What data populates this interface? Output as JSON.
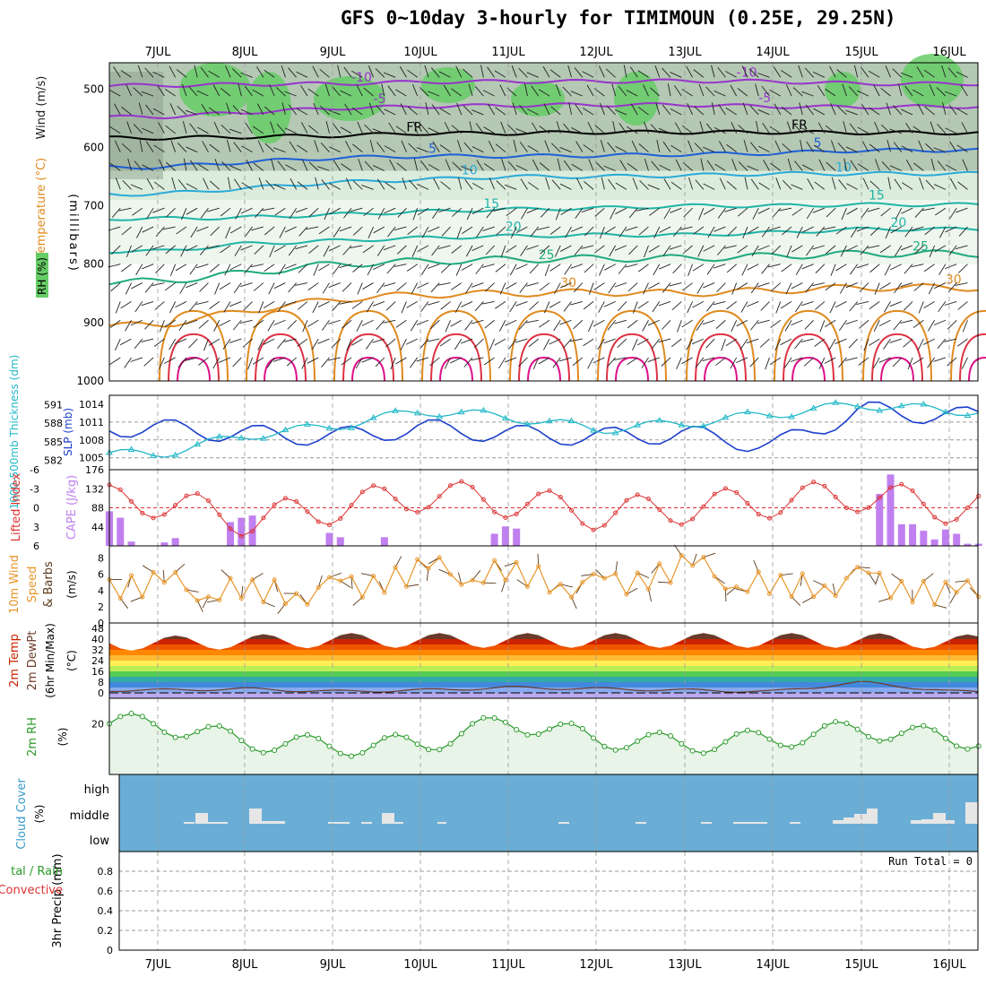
{
  "title": "GFS 0~10day 3-hourly for TIMIMOUN (0.25E, 29.25N)",
  "days": [
    "7JUL",
    "8JUL",
    "9JUL",
    "10JUL",
    "11JUL",
    "12JUL",
    "13JUL",
    "14JUL",
    "15JUL",
    "16JUL"
  ],
  "colors": {
    "rh_dark": "#8ca08c",
    "rh_mid": "#b4c8b4",
    "rh_light": "#dcecdc",
    "rh_green": "#66cc66",
    "temp_purple": "#9933cc",
    "temp_black": "#000000",
    "temp_blue": "#1f5fd8",
    "temp_cyan": "#2aaad8",
    "temp_teal": "#20b4a8",
    "temp_green": "#20aa80",
    "temp_orange": "#e08a1e",
    "temp_red": "#dd3344",
    "temp_magenta": "#dd1188",
    "slp": "#1b3fcc",
    "thickness": "#22b8c8",
    "lifted": "#dd3333",
    "cape": "#c080f0",
    "wind10": "#e8962a",
    "rh2m": "#2a9a2a",
    "cloud_bg": "#6aaed6",
    "cloud_bar": "#e6e6e6"
  },
  "panel_labels": {
    "upper_rh": "RH (%)",
    "upper_temp": "Temperature (°C)",
    "upper_wind": "Wind (m/s)",
    "upper_pressure": "(millibars)",
    "slp": "SLP (mb)",
    "thickness": "1000-500mb Thickness (dm)",
    "lifted": "Lifted Index",
    "cape": "CAPE (J/kg)",
    "wind10_a": "10m Wind",
    "wind10_b": "Speed",
    "wind10_c": "& Barbs",
    "wind10_units": "(m/s)",
    "temp2m_a": "2m Temp",
    "temp2m_b": "2m DewPt",
    "temp2m_c": "(6hr Min/Max)",
    "temp2m_units": "(°C)",
    "rh2m": "2m RH",
    "rh2m_units": "(%)",
    "cloud": "Cloud Cover",
    "cloud_units": "(%)",
    "cloud_high": "high",
    "cloud_middle": "middle",
    "cloud_low": "low",
    "precip": "3hr Precip (mm)",
    "precip_total_rain": "tal / Rain",
    "precip_convective": "Convective",
    "run_total": "Run Total = 0"
  },
  "chart_data": [
    {
      "type": "contour",
      "panel": "upper-air cross-section",
      "ylabel": "(millibars)",
      "yticks": [
        500,
        600,
        700,
        800,
        900,
        1000
      ],
      "ylim": [
        1000,
        455
      ],
      "temperature_isotherms": [
        {
          "value": -10,
          "label": "-10",
          "levels_mb": [
            494,
            492,
            491,
            488,
            487,
            487,
            486,
            487,
            491,
            491
          ]
        },
        {
          "value": -5,
          "label": "-5",
          "levels_mb": [
            548,
            540,
            533,
            530,
            528,
            527,
            527,
            530,
            531,
            530
          ]
        },
        {
          "value": 0,
          "label": "FR",
          "levels_mb": [
            584,
            582,
            580,
            576,
            576,
            574,
            574,
            574,
            575,
            575
          ]
        },
        {
          "value": 5,
          "label": "5",
          "levels_mb": [
            634,
            625,
            618,
            615,
            615,
            614,
            612,
            610,
            605,
            605
          ]
        },
        {
          "value": 10,
          "label": "10",
          "levels_mb": [
            680,
            670,
            660,
            655,
            650,
            650,
            648,
            645,
            645,
            645
          ]
        },
        {
          "value": 15,
          "label": "15",
          "levels_mb": [
            722,
            720,
            715,
            710,
            706,
            704,
            700,
            700,
            698,
            698
          ]
        },
        {
          "value": 20,
          "label": "20",
          "levels_mb": [
            778,
            765,
            760,
            755,
            752,
            750,
            750,
            746,
            740,
            740
          ]
        },
        {
          "value": 25,
          "label": "25",
          "levels_mb": [
            830,
            815,
            800,
            795,
            792,
            790,
            790,
            786,
            782,
            782
          ]
        },
        {
          "value": 30,
          "label": "30",
          "levels_mb": [
            905,
            880,
            860,
            852,
            850,
            848,
            850,
            845,
            840,
            840
          ]
        }
      ],
      "rh_contours": [
        30,
        50,
        70,
        90
      ]
    },
    {
      "type": "line",
      "panel": "SLP and thickness",
      "x": [
        "7JUL",
        "8JUL",
        "9JUL",
        "10JUL",
        "11JUL",
        "12JUL",
        "13JUL",
        "14JUL",
        "15JUL",
        "16JUL"
      ],
      "series": [
        {
          "name": "SLP (mb)",
          "axis": "right",
          "values": [
            1010,
            1009,
            1008.5,
            1010,
            1009,
            1008.5,
            1009,
            1007,
            1013,
            1012
          ]
        },
        {
          "name": "1000-500mb Thickness (dm)",
          "axis": "left",
          "values": [
            583,
            586,
            587.5,
            590,
            589,
            587,
            588,
            589.5,
            591,
            590
          ]
        }
      ],
      "yticks_left": [
        582,
        585,
        588,
        591
      ],
      "yticks_right": [
        1005,
        1008,
        1011,
        1014
      ]
    },
    {
      "type": "bar",
      "panel": "Lifted Index and CAPE",
      "categories": [
        "7JUL",
        "8JUL",
        "9JUL",
        "10JUL",
        "11JUL",
        "12JUL",
        "13JUL",
        "14JUL",
        "15JUL",
        "16JUL"
      ],
      "series": [
        {
          "name": "CAPE (J/kg)",
          "values": [
            40,
            10,
            45,
            20,
            10,
            30,
            0,
            0,
            165,
            20
          ]
        },
        {
          "name": "Lifted Index",
          "values": [
            0,
            0,
            3,
            0,
            0,
            2,
            0,
            1,
            0,
            2
          ]
        }
      ],
      "yticks_left": [
        6,
        3,
        0,
        -3,
        -6
      ],
      "yticks_right": [
        44,
        88,
        132,
        176
      ]
    },
    {
      "type": "line",
      "panel": "10m wind",
      "x": [
        "7JUL",
        "8JUL",
        "9JUL",
        "10JUL",
        "11JUL",
        "12JUL",
        "13JUL",
        "14JUL",
        "15JUL",
        "16JUL"
      ],
      "series": [
        {
          "name": "10m Wind Speed",
          "values": [
            4.8,
            3.5,
            4.2,
            6.5,
            5.8,
            4.5,
            7.0,
            4.0,
            5.5,
            3.5
          ]
        }
      ],
      "yticks": [
        0,
        2,
        4,
        6,
        8
      ]
    },
    {
      "type": "area",
      "panel": "2m temperature",
      "x": [
        "7JUL",
        "8JUL",
        "9JUL",
        "10JUL",
        "11JUL",
        "12JUL",
        "13JUL",
        "14JUL",
        "15JUL",
        "16JUL"
      ],
      "series": [
        {
          "name": "2m Temp max",
          "values": [
            38,
            36,
            44,
            45,
            45,
            45,
            45,
            45,
            45,
            44
          ]
        },
        {
          "name": "2m Temp min",
          "values": [
            35,
            30,
            34,
            34,
            34,
            34,
            34,
            34,
            34,
            34
          ]
        },
        {
          "name": "2m DewPt",
          "values": [
            2,
            3,
            1,
            2,
            4,
            3,
            2,
            1,
            8,
            1
          ]
        }
      ],
      "yticks": [
        0,
        8,
        16,
        24,
        32,
        40,
        48
      ]
    },
    {
      "type": "line",
      "panel": "2m RH",
      "x": [
        "7JUL",
        "8JUL",
        "9JUL",
        "10JUL",
        "11JUL",
        "12JUL",
        "13JUL",
        "14JUL",
        "15JUL",
        "16JUL"
      ],
      "series": [
        {
          "name": "2m RH",
          "values": [
            20,
            13,
            11,
            12,
            21,
            14,
            12,
            14,
            18,
            14
          ]
        }
      ],
      "yticks": [
        20
      ]
    },
    {
      "type": "bar",
      "panel": "cloud cover",
      "categories": [
        "7JUL",
        "8JUL",
        "9JUL",
        "10JUL",
        "11JUL",
        "12JUL",
        "13JUL",
        "14JUL",
        "15JUL",
        "16JUL"
      ],
      "series": [
        {
          "name": "middle",
          "values": [
            20,
            35,
            10,
            25,
            5,
            5,
            5,
            5,
            50,
            55
          ]
        }
      ],
      "yticks": [
        "high",
        "middle",
        "low"
      ]
    },
    {
      "type": "bar",
      "panel": "precipitation",
      "categories": [
        "7JUL",
        "8JUL",
        "9JUL",
        "10JUL",
        "11JUL",
        "12JUL",
        "13JUL",
        "14JUL",
        "15JUL",
        "16JUL"
      ],
      "series": [
        {
          "name": "Rain",
          "values": [
            0,
            0,
            0,
            0,
            0,
            0,
            0,
            0,
            0,
            0
          ]
        }
      ],
      "yticks": [
        0,
        0.2,
        0.4,
        0.6,
        0.8
      ],
      "ylim": [
        0,
        1
      ]
    }
  ]
}
